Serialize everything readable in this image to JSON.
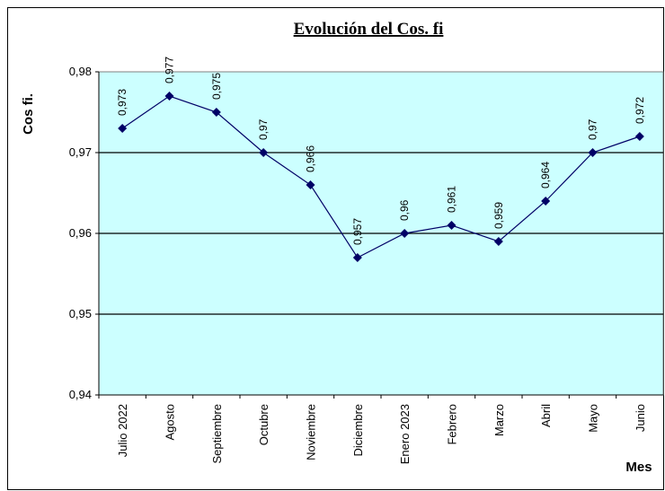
{
  "chart_data": {
    "type": "line",
    "title": "Evolución del Cos. fi",
    "y_label": "Cos fi.",
    "x_label": "Mes",
    "categories": [
      "Julio 2022",
      "Agosto",
      "Septiembre",
      "Octubre",
      "Noviembre",
      "Diciembre",
      "Enero 2023",
      "Febrero",
      "Marzo",
      "Abril",
      "Mayo",
      "Junio"
    ],
    "series": [
      {
        "name": "Cos fi.",
        "color": "#000066",
        "values": [
          0.973,
          0.977,
          0.975,
          0.97,
          0.966,
          0.957,
          0.96,
          0.961,
          0.959,
          0.964,
          0.97,
          0.972
        ],
        "value_labels": [
          "0,973",
          "0,977",
          "0,975",
          "0,97",
          "0,966",
          "0,957",
          "0,96",
          "0,961",
          "0,959",
          "0,964",
          "0,97",
          "0,972"
        ]
      }
    ],
    "ylim": [
      0.94,
      0.98
    ],
    "yticks": [
      {
        "value": 0.94,
        "label": "0,94"
      },
      {
        "value": 0.95,
        "label": "0,95"
      },
      {
        "value": 0.96,
        "label": "0,96"
      },
      {
        "value": 0.97,
        "label": "0,97"
      },
      {
        "value": 0.98,
        "label": "0,98"
      }
    ],
    "grid": true,
    "plot_background": "#ccffff"
  }
}
